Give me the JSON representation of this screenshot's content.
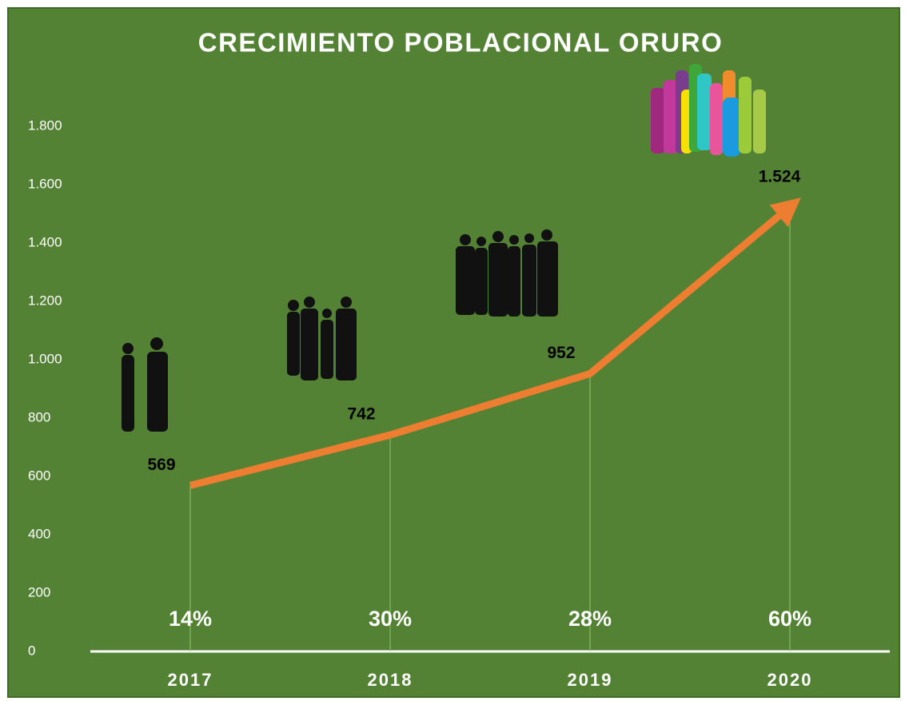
{
  "chart_data": {
    "type": "line",
    "title": "CRECIMIENTO POBLACIONAL ORURO",
    "categories": [
      "2017",
      "2018",
      "2019",
      "2020"
    ],
    "series": [
      {
        "color": "#ed7d31",
        "values": [
          569,
          742,
          952,
          1524
        ],
        "value_labels": [
          "569",
          "742",
          "952",
          "1.524"
        ]
      }
    ],
    "growth": {
      "values": [
        14,
        30,
        28,
        60
      ],
      "value_labels": [
        "14%",
        "30%",
        "28%",
        "60%"
      ]
    },
    "ylim": [
      0,
      2000
    ],
    "yticks": [
      0,
      200,
      400,
      600,
      800,
      {
        "value": 1000,
        "label": "1.000"
      },
      {
        "value": 1200,
        "label": "1.200"
      },
      {
        "value": 1400,
        "label": "1.400"
      },
      {
        "value": 1600,
        "label": "1.600"
      },
      {
        "value": 1800,
        "label": "1.800"
      }
    ],
    "drop_lines": true
  }
}
